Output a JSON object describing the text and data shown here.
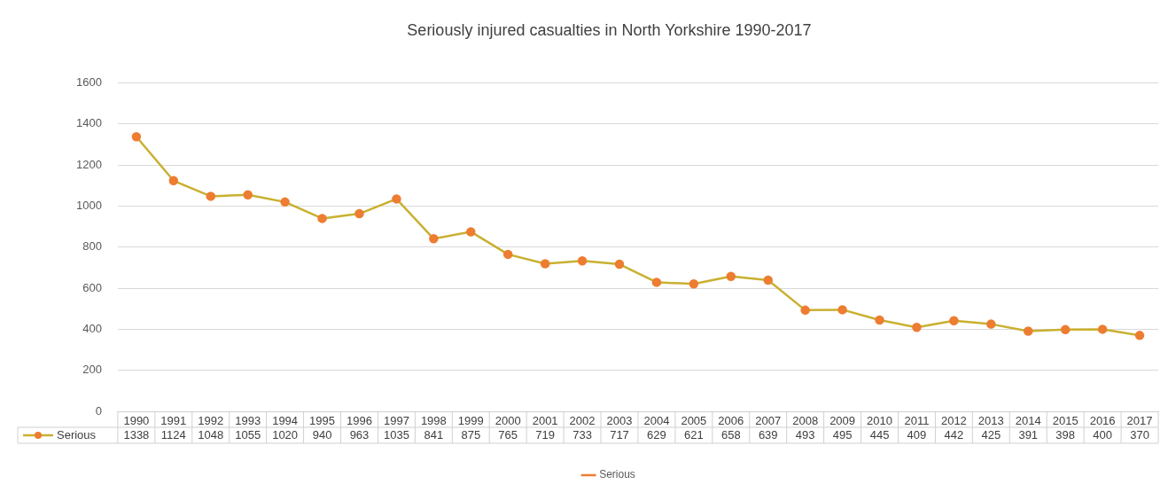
{
  "chart_data": {
    "type": "line",
    "title": "Seriously injured casualties in North Yorkshire 1990-2017",
    "categories": [
      "1990",
      "1991",
      "1992",
      "1993",
      "1994",
      "1995",
      "1996",
      "1997",
      "1998",
      "1999",
      "2000",
      "2001",
      "2002",
      "2003",
      "2004",
      "2005",
      "2006",
      "2007",
      "2008",
      "2009",
      "2010",
      "2011",
      "2012",
      "2013",
      "2014",
      "2015",
      "2016",
      "2017"
    ],
    "series": [
      {
        "name": "Serious",
        "color": "#c9b030",
        "values": [
          1338,
          1124,
          1048,
          1055,
          1020,
          940,
          963,
          1035,
          841,
          875,
          765,
          719,
          733,
          717,
          629,
          621,
          658,
          639,
          493,
          495,
          445,
          409,
          442,
          425,
          391,
          398,
          400,
          370
        ]
      }
    ],
    "ylim": [
      0,
      1600
    ],
    "yticks": [
      0,
      200,
      400,
      600,
      800,
      1000,
      1200,
      1400,
      1600
    ],
    "grid": "y",
    "legend": "bottom",
    "marker": "circle",
    "line_style": "solid",
    "data_labels": true
  }
}
